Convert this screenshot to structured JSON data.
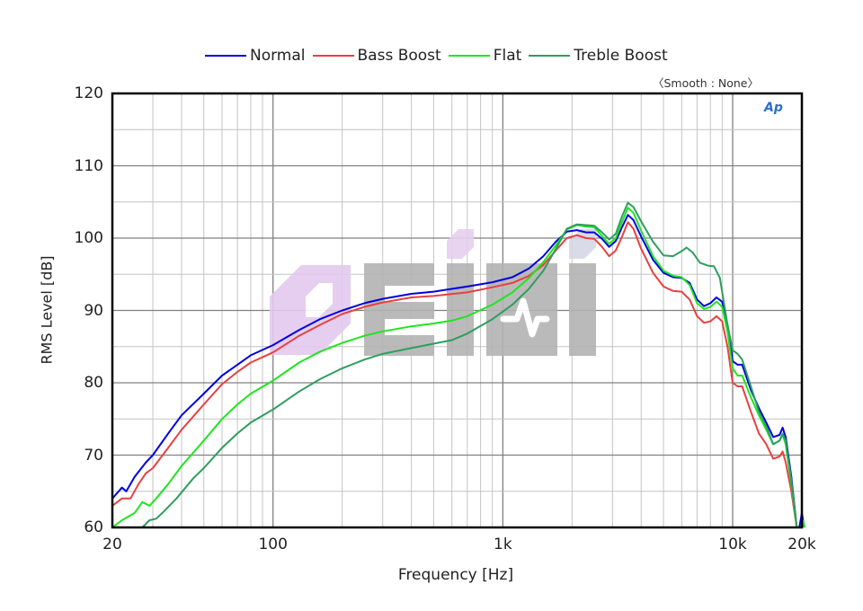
{
  "legend": {
    "items": [
      {
        "label": "Normal",
        "color": "#0000e0"
      },
      {
        "label": "Bass Boost",
        "color": "#e84040"
      },
      {
        "label": "Flat",
        "color": "#1ee61e"
      },
      {
        "label": "Treble Boost",
        "color": "#2e9e5e"
      }
    ],
    "smooth_note": "〈Smooth : None〉"
  },
  "logo": {
    "text": "Ap"
  },
  "watermark": {
    "text": "EIHI"
  },
  "chart_data": {
    "type": "line",
    "title": "",
    "xlabel": "Frequency [Hz]",
    "ylabel": "RMS Level [dB]",
    "xscale": "log",
    "xlim": [
      20,
      20000
    ],
    "ylim": [
      60,
      120
    ],
    "x_ticks": [
      {
        "value": 20,
        "label": "20"
      },
      {
        "value": 100,
        "label": "100"
      },
      {
        "value": 1000,
        "label": "1k"
      },
      {
        "value": 10000,
        "label": "10k"
      },
      {
        "value": 20000,
        "label": "20k"
      }
    ],
    "y_ticks": [
      {
        "value": 60,
        "label": "60"
      },
      {
        "value": 70,
        "label": "70"
      },
      {
        "value": 80,
        "label": "80"
      },
      {
        "value": 90,
        "label": "90"
      },
      {
        "value": 100,
        "label": "100"
      },
      {
        "value": 110,
        "label": "110"
      },
      {
        "value": 120,
        "label": "120"
      }
    ],
    "grid": true,
    "legend_position": "top",
    "series": [
      {
        "name": "Normal",
        "color": "#0000e0",
        "points": [
          [
            20,
            64
          ],
          [
            22,
            65.5
          ],
          [
            23,
            65
          ],
          [
            25,
            67
          ],
          [
            28,
            69
          ],
          [
            30,
            70
          ],
          [
            35,
            73
          ],
          [
            40,
            75.5
          ],
          [
            50,
            78.5
          ],
          [
            60,
            81
          ],
          [
            70,
            82.5
          ],
          [
            80,
            83.8
          ],
          [
            100,
            85.2
          ],
          [
            130,
            87.3
          ],
          [
            160,
            88.8
          ],
          [
            200,
            90
          ],
          [
            250,
            91
          ],
          [
            300,
            91.6
          ],
          [
            400,
            92.3
          ],
          [
            500,
            92.6
          ],
          [
            700,
            93.3
          ],
          [
            900,
            93.9
          ],
          [
            1100,
            94.6
          ],
          [
            1300,
            95.8
          ],
          [
            1500,
            97.5
          ],
          [
            1700,
            99.5
          ],
          [
            1900,
            100.9
          ],
          [
            2100,
            101.1
          ],
          [
            2300,
            100.8
          ],
          [
            2500,
            100.8
          ],
          [
            2700,
            99.9
          ],
          [
            2900,
            98.8
          ],
          [
            3100,
            99.6
          ],
          [
            3300,
            101.5
          ],
          [
            3500,
            103.2
          ],
          [
            3700,
            102.5
          ],
          [
            4000,
            100.2
          ],
          [
            4500,
            97
          ],
          [
            5000,
            95.2
          ],
          [
            5500,
            94.6
          ],
          [
            6000,
            94.5
          ],
          [
            6500,
            93.8
          ],
          [
            7000,
            91.5
          ],
          [
            7500,
            90.6
          ],
          [
            8000,
            91
          ],
          [
            8500,
            91.8
          ],
          [
            9000,
            91.2
          ],
          [
            9500,
            88
          ],
          [
            10000,
            83
          ],
          [
            10500,
            82.5
          ],
          [
            11000,
            82.5
          ],
          [
            12000,
            79
          ],
          [
            13000,
            76.5
          ],
          [
            14000,
            74.5
          ],
          [
            15000,
            72.5
          ],
          [
            16000,
            72.8
          ],
          [
            16500,
            73.8
          ],
          [
            17000,
            72.5
          ],
          [
            18000,
            67
          ],
          [
            19000,
            60
          ],
          [
            19500,
            60
          ],
          [
            20000,
            62
          ],
          [
            20500,
            60
          ]
        ]
      },
      {
        "name": "Bass Boost",
        "color": "#e84040",
        "points": [
          [
            20,
            63
          ],
          [
            22,
            64
          ],
          [
            24,
            64
          ],
          [
            26,
            66
          ],
          [
            28,
            67.5
          ],
          [
            30,
            68.2
          ],
          [
            35,
            71
          ],
          [
            40,
            73.5
          ],
          [
            50,
            77
          ],
          [
            60,
            79.8
          ],
          [
            70,
            81.5
          ],
          [
            80,
            82.8
          ],
          [
            100,
            84.2
          ],
          [
            130,
            86.5
          ],
          [
            160,
            88
          ],
          [
            200,
            89.5
          ],
          [
            250,
            90.5
          ],
          [
            300,
            91.1
          ],
          [
            400,
            91.8
          ],
          [
            500,
            92
          ],
          [
            700,
            92.5
          ],
          [
            900,
            93.2
          ],
          [
            1100,
            93.8
          ],
          [
            1300,
            94.8
          ],
          [
            1500,
            96.3
          ],
          [
            1700,
            98.3
          ],
          [
            1900,
            100
          ],
          [
            2100,
            100.4
          ],
          [
            2300,
            100
          ],
          [
            2500,
            99.9
          ],
          [
            2700,
            98.8
          ],
          [
            2900,
            97.5
          ],
          [
            3100,
            98.3
          ],
          [
            3300,
            100.2
          ],
          [
            3500,
            102.2
          ],
          [
            3700,
            101.3
          ],
          [
            4000,
            98.5
          ],
          [
            4500,
            95.2
          ],
          [
            5000,
            93.3
          ],
          [
            5500,
            92.7
          ],
          [
            6000,
            92.6
          ],
          [
            6500,
            91.5
          ],
          [
            7000,
            89.2
          ],
          [
            7500,
            88.3
          ],
          [
            8000,
            88.5
          ],
          [
            8500,
            89.2
          ],
          [
            9000,
            88.5
          ],
          [
            9500,
            85
          ],
          [
            10000,
            80
          ],
          [
            10500,
            79.5
          ],
          [
            11000,
            79.5
          ],
          [
            12000,
            76
          ],
          [
            13000,
            73
          ],
          [
            14000,
            71.5
          ],
          [
            15000,
            69.5
          ],
          [
            16000,
            69.8
          ],
          [
            16500,
            70.5
          ],
          [
            17000,
            69
          ],
          [
            18000,
            65
          ],
          [
            19000,
            60
          ]
        ]
      },
      {
        "name": "Flat",
        "color": "#1ee61e",
        "points": [
          [
            20,
            60
          ],
          [
            22,
            61
          ],
          [
            25,
            62
          ],
          [
            27,
            63.5
          ],
          [
            29,
            63
          ],
          [
            31,
            64
          ],
          [
            35,
            66
          ],
          [
            40,
            68.5
          ],
          [
            50,
            72
          ],
          [
            60,
            75
          ],
          [
            70,
            77
          ],
          [
            80,
            78.5
          ],
          [
            100,
            80.3
          ],
          [
            130,
            82.8
          ],
          [
            160,
            84.3
          ],
          [
            200,
            85.5
          ],
          [
            250,
            86.5
          ],
          [
            300,
            87.1
          ],
          [
            400,
            87.8
          ],
          [
            500,
            88.2
          ],
          [
            600,
            88.6
          ],
          [
            700,
            89.2
          ],
          [
            900,
            90.8
          ],
          [
            1100,
            92.5
          ],
          [
            1300,
            94.5
          ],
          [
            1500,
            96.7
          ],
          [
            1700,
            99
          ],
          [
            1900,
            101.2
          ],
          [
            2100,
            101.8
          ],
          [
            2300,
            101.6
          ],
          [
            2500,
            101.5
          ],
          [
            2700,
            100.3
          ],
          [
            2900,
            99.2
          ],
          [
            3100,
            100
          ],
          [
            3300,
            102.2
          ],
          [
            3500,
            104.2
          ],
          [
            3700,
            103.5
          ],
          [
            4000,
            101
          ],
          [
            4500,
            97.5
          ],
          [
            5000,
            95.5
          ],
          [
            5500,
            94.8
          ],
          [
            6000,
            94.6
          ],
          [
            6500,
            93.5
          ],
          [
            7000,
            91
          ],
          [
            7500,
            90.2
          ],
          [
            8000,
            90.5
          ],
          [
            8500,
            91.2
          ],
          [
            9000,
            90.5
          ],
          [
            9500,
            87
          ],
          [
            10000,
            82
          ],
          [
            10500,
            81
          ],
          [
            11000,
            81
          ],
          [
            12000,
            78
          ],
          [
            13000,
            75.5
          ],
          [
            14000,
            73.5
          ],
          [
            15000,
            71.5
          ],
          [
            16000,
            72
          ],
          [
            16500,
            72.8
          ],
          [
            17000,
            71.5
          ],
          [
            18000,
            66
          ],
          [
            19000,
            60
          ],
          [
            19800,
            60
          ],
          [
            20200,
            61
          ],
          [
            20600,
            60
          ]
        ]
      },
      {
        "name": "Treble Boost",
        "color": "#2e9e5e",
        "points": [
          [
            27,
            60
          ],
          [
            29,
            61
          ],
          [
            31,
            61.2
          ],
          [
            33,
            62
          ],
          [
            38,
            64
          ],
          [
            45,
            66.8
          ],
          [
            50,
            68.2
          ],
          [
            60,
            71
          ],
          [
            70,
            73
          ],
          [
            80,
            74.5
          ],
          [
            100,
            76.3
          ],
          [
            130,
            78.8
          ],
          [
            160,
            80.5
          ],
          [
            200,
            82
          ],
          [
            250,
            83.2
          ],
          [
            300,
            84
          ],
          [
            400,
            84.8
          ],
          [
            500,
            85.4
          ],
          [
            600,
            85.9
          ],
          [
            700,
            86.8
          ],
          [
            900,
            88.8
          ],
          [
            1100,
            90.8
          ],
          [
            1300,
            93
          ],
          [
            1500,
            95.5
          ],
          [
            1700,
            98.5
          ],
          [
            1900,
            101.3
          ],
          [
            2100,
            101.9
          ],
          [
            2300,
            101.8
          ],
          [
            2500,
            101.7
          ],
          [
            2700,
            100.8
          ],
          [
            2900,
            99.8
          ],
          [
            3100,
            100.6
          ],
          [
            3300,
            103
          ],
          [
            3500,
            104.9
          ],
          [
            3700,
            104.3
          ],
          [
            4000,
            102.3
          ],
          [
            4500,
            99.5
          ],
          [
            5000,
            97.6
          ],
          [
            5500,
            97.5
          ],
          [
            6000,
            98.2
          ],
          [
            6300,
            98.7
          ],
          [
            6700,
            98
          ],
          [
            7200,
            96.6
          ],
          [
            7800,
            96.2
          ],
          [
            8300,
            96.1
          ],
          [
            8800,
            94.5
          ],
          [
            9500,
            88
          ],
          [
            10000,
            84.5
          ],
          [
            10500,
            84
          ],
          [
            11000,
            83.2
          ],
          [
            12000,
            79.5
          ],
          [
            13000,
            76
          ],
          [
            14000,
            74
          ],
          [
            15000,
            71.5
          ],
          [
            16000,
            72
          ],
          [
            16500,
            73
          ],
          [
            17000,
            72
          ],
          [
            18000,
            66.5
          ],
          [
            19000,
            60
          ],
          [
            19800,
            60
          ],
          [
            20200,
            60.5
          ]
        ]
      }
    ]
  }
}
